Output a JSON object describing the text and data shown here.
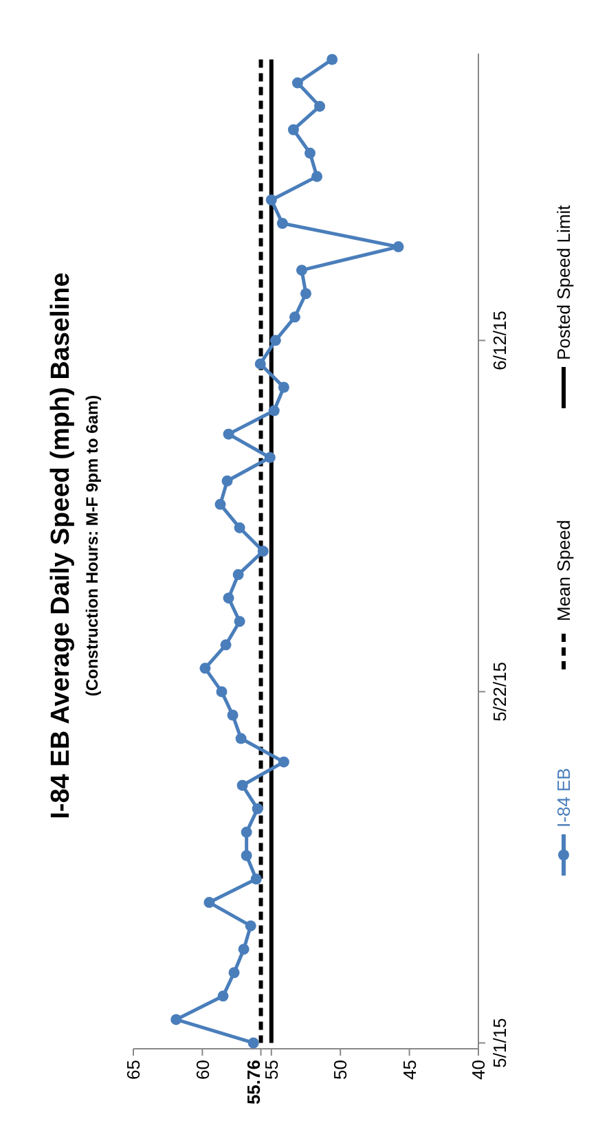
{
  "chart_data": {
    "type": "line",
    "orientation": "horizontal",
    "title": "I-84 EB Average Daily Speed (mph) Baseline",
    "subtitle": "(Construction Hours: M-F 9pm to 6am)",
    "categories": [
      null,
      null,
      null,
      null,
      null,
      null,
      null,
      null,
      null,
      null,
      null,
      null,
      "6/12/15",
      null,
      null,
      null,
      null,
      null,
      null,
      null,
      null,
      null,
      null,
      null,
      null,
      null,
      null,
      "5/22/15",
      null,
      null,
      null,
      null,
      null,
      null,
      null,
      null,
      null,
      null,
      null,
      null,
      null,
      null,
      "5/1/15"
    ],
    "series": [
      {
        "name": "I-84 EB",
        "color": "#4a7ebb",
        "marker": "circle",
        "line_style": "solid",
        "values": [
          50.6,
          53.1,
          51.5,
          53.4,
          52.2,
          51.7,
          55.0,
          54.2,
          45.8,
          52.8,
          52.5,
          53.3,
          54.7,
          55.8,
          54.1,
          54.8,
          58.1,
          55.1,
          58.2,
          58.7,
          57.3,
          55.6,
          57.4,
          58.1,
          57.3,
          58.3,
          59.8,
          58.6,
          57.8,
          57.2,
          54.1,
          57.1,
          56.0,
          56.8,
          56.8,
          56.1,
          59.5,
          56.5,
          57.0,
          57.7,
          58.5,
          61.9,
          56.3
        ]
      },
      {
        "name": "Mean Speed",
        "color": "#000000",
        "marker": "none",
        "line_style": "dashed",
        "values": [
          55.76,
          55.76,
          55.76,
          55.76,
          55.76,
          55.76,
          55.76,
          55.76,
          55.76,
          55.76,
          55.76,
          55.76,
          55.76,
          55.76,
          55.76,
          55.76,
          55.76,
          55.76,
          55.76,
          55.76,
          55.76,
          55.76,
          55.76,
          55.76,
          55.76,
          55.76,
          55.76,
          55.76,
          55.76,
          55.76,
          55.76,
          55.76,
          55.76,
          55.76,
          55.76,
          55.76,
          55.76,
          55.76,
          55.76,
          55.76,
          55.76,
          55.76,
          55.76
        ]
      },
      {
        "name": "Posted Speed Limit",
        "color": "#000000",
        "marker": "none",
        "line_style": "solid",
        "values": [
          55,
          55,
          55,
          55,
          55,
          55,
          55,
          55,
          55,
          55,
          55,
          55,
          55,
          55,
          55,
          55,
          55,
          55,
          55,
          55,
          55,
          55,
          55,
          55,
          55,
          55,
          55,
          55,
          55,
          55,
          55,
          55,
          55,
          55,
          55,
          55,
          55,
          55,
          55,
          55,
          55,
          55,
          55
        ]
      }
    ],
    "xlim": [
      65,
      40
    ],
    "xticks": [
      65,
      60,
      55.76,
      55,
      50,
      45,
      40
    ],
    "legend": "right"
  }
}
